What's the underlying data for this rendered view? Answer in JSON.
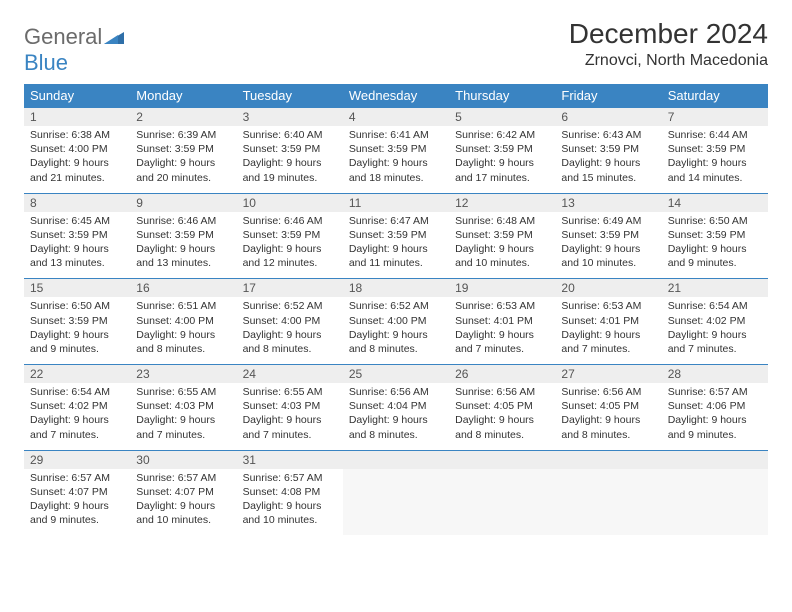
{
  "logo": {
    "word1": "General",
    "word2": "Blue"
  },
  "title": "December 2024",
  "location": "Zrnovci, North Macedonia",
  "colors": {
    "header_bg": "#3a84c2",
    "header_text": "#ffffff",
    "daynum_bg": "#eeeeee",
    "border": "#3a84c2",
    "logo_gray": "#6b6b6b",
    "logo_blue": "#3a84c2",
    "page_bg": "#ffffff"
  },
  "layout": {
    "columns": 7,
    "rows": 5,
    "title_fontsize": 28,
    "location_fontsize": 16,
    "dayheader_fontsize": 13,
    "daynum_fontsize": 12,
    "body_fontsize": 10.5
  },
  "weekdays": [
    "Sunday",
    "Monday",
    "Tuesday",
    "Wednesday",
    "Thursday",
    "Friday",
    "Saturday"
  ],
  "weeks": [
    [
      {
        "n": "1",
        "sunrise": "Sunrise: 6:38 AM",
        "sunset": "Sunset: 4:00 PM",
        "daylight": "Daylight: 9 hours and 21 minutes."
      },
      {
        "n": "2",
        "sunrise": "Sunrise: 6:39 AM",
        "sunset": "Sunset: 3:59 PM",
        "daylight": "Daylight: 9 hours and 20 minutes."
      },
      {
        "n": "3",
        "sunrise": "Sunrise: 6:40 AM",
        "sunset": "Sunset: 3:59 PM",
        "daylight": "Daylight: 9 hours and 19 minutes."
      },
      {
        "n": "4",
        "sunrise": "Sunrise: 6:41 AM",
        "sunset": "Sunset: 3:59 PM",
        "daylight": "Daylight: 9 hours and 18 minutes."
      },
      {
        "n": "5",
        "sunrise": "Sunrise: 6:42 AM",
        "sunset": "Sunset: 3:59 PM",
        "daylight": "Daylight: 9 hours and 17 minutes."
      },
      {
        "n": "6",
        "sunrise": "Sunrise: 6:43 AM",
        "sunset": "Sunset: 3:59 PM",
        "daylight": "Daylight: 9 hours and 15 minutes."
      },
      {
        "n": "7",
        "sunrise": "Sunrise: 6:44 AM",
        "sunset": "Sunset: 3:59 PM",
        "daylight": "Daylight: 9 hours and 14 minutes."
      }
    ],
    [
      {
        "n": "8",
        "sunrise": "Sunrise: 6:45 AM",
        "sunset": "Sunset: 3:59 PM",
        "daylight": "Daylight: 9 hours and 13 minutes."
      },
      {
        "n": "9",
        "sunrise": "Sunrise: 6:46 AM",
        "sunset": "Sunset: 3:59 PM",
        "daylight": "Daylight: 9 hours and 13 minutes."
      },
      {
        "n": "10",
        "sunrise": "Sunrise: 6:46 AM",
        "sunset": "Sunset: 3:59 PM",
        "daylight": "Daylight: 9 hours and 12 minutes."
      },
      {
        "n": "11",
        "sunrise": "Sunrise: 6:47 AM",
        "sunset": "Sunset: 3:59 PM",
        "daylight": "Daylight: 9 hours and 11 minutes."
      },
      {
        "n": "12",
        "sunrise": "Sunrise: 6:48 AM",
        "sunset": "Sunset: 3:59 PM",
        "daylight": "Daylight: 9 hours and 10 minutes."
      },
      {
        "n": "13",
        "sunrise": "Sunrise: 6:49 AM",
        "sunset": "Sunset: 3:59 PM",
        "daylight": "Daylight: 9 hours and 10 minutes."
      },
      {
        "n": "14",
        "sunrise": "Sunrise: 6:50 AM",
        "sunset": "Sunset: 3:59 PM",
        "daylight": "Daylight: 9 hours and 9 minutes."
      }
    ],
    [
      {
        "n": "15",
        "sunrise": "Sunrise: 6:50 AM",
        "sunset": "Sunset: 3:59 PM",
        "daylight": "Daylight: 9 hours and 9 minutes."
      },
      {
        "n": "16",
        "sunrise": "Sunrise: 6:51 AM",
        "sunset": "Sunset: 4:00 PM",
        "daylight": "Daylight: 9 hours and 8 minutes."
      },
      {
        "n": "17",
        "sunrise": "Sunrise: 6:52 AM",
        "sunset": "Sunset: 4:00 PM",
        "daylight": "Daylight: 9 hours and 8 minutes."
      },
      {
        "n": "18",
        "sunrise": "Sunrise: 6:52 AM",
        "sunset": "Sunset: 4:00 PM",
        "daylight": "Daylight: 9 hours and 8 minutes."
      },
      {
        "n": "19",
        "sunrise": "Sunrise: 6:53 AM",
        "sunset": "Sunset: 4:01 PM",
        "daylight": "Daylight: 9 hours and 7 minutes."
      },
      {
        "n": "20",
        "sunrise": "Sunrise: 6:53 AM",
        "sunset": "Sunset: 4:01 PM",
        "daylight": "Daylight: 9 hours and 7 minutes."
      },
      {
        "n": "21",
        "sunrise": "Sunrise: 6:54 AM",
        "sunset": "Sunset: 4:02 PM",
        "daylight": "Daylight: 9 hours and 7 minutes."
      }
    ],
    [
      {
        "n": "22",
        "sunrise": "Sunrise: 6:54 AM",
        "sunset": "Sunset: 4:02 PM",
        "daylight": "Daylight: 9 hours and 7 minutes."
      },
      {
        "n": "23",
        "sunrise": "Sunrise: 6:55 AM",
        "sunset": "Sunset: 4:03 PM",
        "daylight": "Daylight: 9 hours and 7 minutes."
      },
      {
        "n": "24",
        "sunrise": "Sunrise: 6:55 AM",
        "sunset": "Sunset: 4:03 PM",
        "daylight": "Daylight: 9 hours and 7 minutes."
      },
      {
        "n": "25",
        "sunrise": "Sunrise: 6:56 AM",
        "sunset": "Sunset: 4:04 PM",
        "daylight": "Daylight: 9 hours and 8 minutes."
      },
      {
        "n": "26",
        "sunrise": "Sunrise: 6:56 AM",
        "sunset": "Sunset: 4:05 PM",
        "daylight": "Daylight: 9 hours and 8 minutes."
      },
      {
        "n": "27",
        "sunrise": "Sunrise: 6:56 AM",
        "sunset": "Sunset: 4:05 PM",
        "daylight": "Daylight: 9 hours and 8 minutes."
      },
      {
        "n": "28",
        "sunrise": "Sunrise: 6:57 AM",
        "sunset": "Sunset: 4:06 PM",
        "daylight": "Daylight: 9 hours and 9 minutes."
      }
    ],
    [
      {
        "n": "29",
        "sunrise": "Sunrise: 6:57 AM",
        "sunset": "Sunset: 4:07 PM",
        "daylight": "Daylight: 9 hours and 9 minutes."
      },
      {
        "n": "30",
        "sunrise": "Sunrise: 6:57 AM",
        "sunset": "Sunset: 4:07 PM",
        "daylight": "Daylight: 9 hours and 10 minutes."
      },
      {
        "n": "31",
        "sunrise": "Sunrise: 6:57 AM",
        "sunset": "Sunset: 4:08 PM",
        "daylight": "Daylight: 9 hours and 10 minutes."
      },
      null,
      null,
      null,
      null
    ]
  ]
}
